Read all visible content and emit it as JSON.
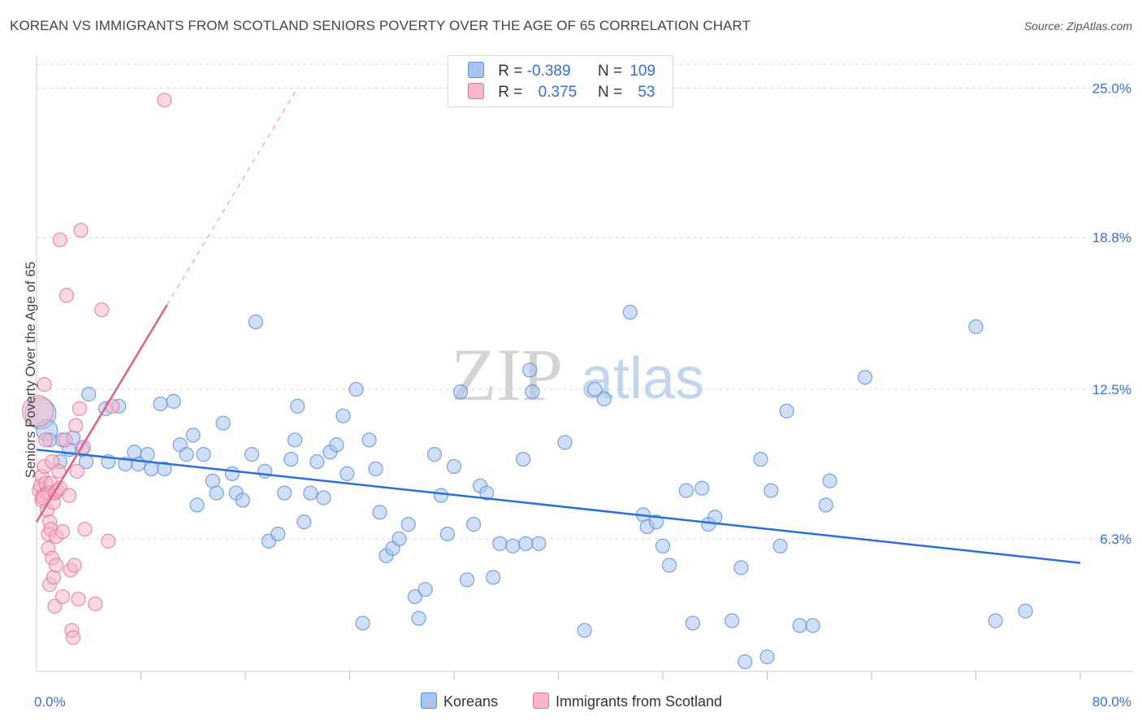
{
  "title": "KOREAN VS IMMIGRANTS FROM SCOTLAND SENIORS POVERTY OVER THE AGE OF 65 CORRELATION CHART",
  "source": "Source: ZipAtlas.com",
  "watermark": {
    "zip": "ZIP",
    "atlas": "atlas"
  },
  "legend": {
    "korean": {
      "r_label": "R =",
      "r": "-0.389",
      "n_label": "N =",
      "n": "109"
    },
    "scotland": {
      "r_label": "R =",
      "r": "0.375",
      "n_label": "N =",
      "n": "53"
    }
  },
  "colors": {
    "korean_fill": "#a9c5ef",
    "korean_stroke": "#5b8fd6",
    "korean_line": "#2a6fd4",
    "scotland_fill": "#f5b8cb",
    "scotland_stroke": "#e07798",
    "scotland_line": "#e0608a",
    "tick_label": "#3a6fd0",
    "grid": "#d8d8d8"
  },
  "chart_data": {
    "type": "scatter",
    "title": "KOREAN VS IMMIGRANTS FROM SCOTLAND SENIORS POVERTY OVER THE AGE OF 65 CORRELATION CHART",
    "xlabel": "",
    "ylabel": "Seniors Poverty Over the Age of 65",
    "xlim": [
      0,
      80
    ],
    "ylim": [
      0.8,
      26.8
    ],
    "x_tick_labels": [
      "0.0%",
      "80.0%"
    ],
    "y_ticks": [
      6.3,
      12.5,
      18.8,
      25.0
    ],
    "y_tick_labels": [
      "6.3%",
      "12.5%",
      "18.8%",
      "25.0%"
    ],
    "grid": true,
    "legend_position": "top-center",
    "series": [
      {
        "name": "Koreans",
        "r": -0.389,
        "n": 109,
        "trend": {
          "x0": 0,
          "y0": 10.0,
          "x1": 80,
          "y1": 5.3
        },
        "points": [
          [
            0.3,
            11.5
          ],
          [
            0.8,
            10.8
          ],
          [
            1.0,
            10.4
          ],
          [
            1.8,
            9.5
          ],
          [
            2.0,
            10.4
          ],
          [
            2.5,
            10.0
          ],
          [
            2.8,
            10.5
          ],
          [
            3.5,
            10.0
          ],
          [
            3.8,
            9.5
          ],
          [
            4.0,
            12.3
          ],
          [
            5.3,
            11.7
          ],
          [
            5.5,
            9.5
          ],
          [
            6.3,
            11.8
          ],
          [
            6.8,
            9.4
          ],
          [
            7.5,
            9.9
          ],
          [
            7.8,
            9.4
          ],
          [
            8.5,
            9.8
          ],
          [
            8.8,
            9.2
          ],
          [
            9.5,
            11.9
          ],
          [
            9.8,
            9.2
          ],
          [
            10.5,
            12.0
          ],
          [
            11.0,
            10.2
          ],
          [
            11.5,
            9.8
          ],
          [
            12.0,
            10.6
          ],
          [
            12.3,
            7.7
          ],
          [
            12.8,
            9.8
          ],
          [
            13.5,
            8.7
          ],
          [
            13.8,
            8.2
          ],
          [
            14.3,
            11.1
          ],
          [
            15.0,
            9.0
          ],
          [
            15.3,
            8.2
          ],
          [
            15.8,
            7.9
          ],
          [
            16.5,
            9.8
          ],
          [
            16.8,
            15.3
          ],
          [
            17.5,
            9.1
          ],
          [
            17.8,
            6.2
          ],
          [
            18.5,
            6.5
          ],
          [
            19.0,
            8.2
          ],
          [
            19.5,
            9.6
          ],
          [
            19.8,
            10.4
          ],
          [
            20.0,
            11.8
          ],
          [
            20.5,
            7.0
          ],
          [
            21.0,
            8.2
          ],
          [
            21.5,
            9.5
          ],
          [
            22.0,
            8.0
          ],
          [
            22.5,
            9.9
          ],
          [
            23.0,
            10.2
          ],
          [
            23.5,
            11.4
          ],
          [
            23.8,
            9.0
          ],
          [
            24.5,
            12.5
          ],
          [
            25.0,
            2.8
          ],
          [
            25.5,
            10.4
          ],
          [
            26.0,
            9.2
          ],
          [
            26.3,
            7.4
          ],
          [
            26.8,
            5.6
          ],
          [
            27.3,
            5.9
          ],
          [
            27.8,
            6.3
          ],
          [
            28.5,
            6.9
          ],
          [
            29.0,
            3.9
          ],
          [
            29.3,
            3.0
          ],
          [
            29.8,
            4.2
          ],
          [
            30.5,
            9.8
          ],
          [
            31.0,
            8.1
          ],
          [
            31.5,
            6.5
          ],
          [
            32.0,
            9.3
          ],
          [
            32.5,
            12.4
          ],
          [
            33.0,
            4.6
          ],
          [
            33.5,
            6.9
          ],
          [
            34.0,
            8.5
          ],
          [
            34.5,
            8.2
          ],
          [
            35.0,
            4.7
          ],
          [
            35.5,
            6.1
          ],
          [
            36.5,
            6.0
          ],
          [
            37.3,
            9.6
          ],
          [
            37.8,
            13.3
          ],
          [
            37.5,
            6.1
          ],
          [
            38.0,
            12.4
          ],
          [
            38.5,
            6.1
          ],
          [
            40.5,
            10.3
          ],
          [
            42.0,
            2.5
          ],
          [
            42.8,
            12.5
          ],
          [
            43.5,
            12.1
          ],
          [
            45.5,
            15.7
          ],
          [
            46.5,
            7.3
          ],
          [
            46.8,
            6.8
          ],
          [
            47.5,
            7.0
          ],
          [
            48.0,
            6.0
          ],
          [
            48.5,
            5.2
          ],
          [
            49.8,
            8.3
          ],
          [
            50.3,
            2.8
          ],
          [
            51.0,
            8.4
          ],
          [
            51.5,
            6.9
          ],
          [
            52.0,
            7.2
          ],
          [
            53.3,
            2.9
          ],
          [
            54.0,
            5.1
          ],
          [
            54.3,
            1.2
          ],
          [
            55.5,
            9.6
          ],
          [
            56.0,
            1.4
          ],
          [
            56.3,
            8.3
          ],
          [
            57.0,
            6.0
          ],
          [
            57.5,
            11.6
          ],
          [
            58.5,
            2.7
          ],
          [
            59.5,
            2.7
          ],
          [
            60.5,
            7.7
          ],
          [
            60.8,
            8.7
          ],
          [
            63.5,
            13.0
          ],
          [
            72.0,
            15.1
          ],
          [
            73.5,
            2.9
          ],
          [
            75.8,
            3.3
          ]
        ]
      },
      {
        "name": "Immigrants from Scotland",
        "r": 0.375,
        "n": 53,
        "trend": {
          "x0": 0,
          "y0": 7.0,
          "x1": 10,
          "y1": 16.0,
          "dash_to": {
            "x": 20,
            "y": 25.0
          }
        },
        "points": [
          [
            0.1,
            11.6
          ],
          [
            0.2,
            8.3
          ],
          [
            0.3,
            8.5
          ],
          [
            0.4,
            8.9
          ],
          [
            0.4,
            7.9
          ],
          [
            0.5,
            8.1
          ],
          [
            0.6,
            12.7
          ],
          [
            0.6,
            9.3
          ],
          [
            0.7,
            10.4
          ],
          [
            0.7,
            8.6
          ],
          [
            0.8,
            8.2
          ],
          [
            0.8,
            7.5
          ],
          [
            0.9,
            6.5
          ],
          [
            0.9,
            5.9
          ],
          [
            1.0,
            8.2
          ],
          [
            1.0,
            7.0
          ],
          [
            1.0,
            4.4
          ],
          [
            1.1,
            8.6
          ],
          [
            1.1,
            6.7
          ],
          [
            1.2,
            9.5
          ],
          [
            1.2,
            5.5
          ],
          [
            1.3,
            7.8
          ],
          [
            1.3,
            4.7
          ],
          [
            1.4,
            8.2
          ],
          [
            1.4,
            3.5
          ],
          [
            1.5,
            6.4
          ],
          [
            1.5,
            5.2
          ],
          [
            1.6,
            8.3
          ],
          [
            1.7,
            9.1
          ],
          [
            1.8,
            8.4
          ],
          [
            1.8,
            18.7
          ],
          [
            2.0,
            6.6
          ],
          [
            2.0,
            3.9
          ],
          [
            2.2,
            10.4
          ],
          [
            2.3,
            16.4
          ],
          [
            2.5,
            8.1
          ],
          [
            2.6,
            5.0
          ],
          [
            2.7,
            2.5
          ],
          [
            2.8,
            2.2
          ],
          [
            2.9,
            5.2
          ],
          [
            3.0,
            11.0
          ],
          [
            3.1,
            9.1
          ],
          [
            3.2,
            3.8
          ],
          [
            3.3,
            11.7
          ],
          [
            3.4,
            19.1
          ],
          [
            3.6,
            10.1
          ],
          [
            3.7,
            6.7
          ],
          [
            4.5,
            3.6
          ],
          [
            5.0,
            15.8
          ],
          [
            5.5,
            6.2
          ],
          [
            5.8,
            11.8
          ],
          [
            9.8,
            24.5
          ],
          [
            0.5,
            8.0
          ]
        ]
      }
    ]
  },
  "bottom_legend": {
    "korean": "Koreans",
    "scotland": "Immigrants from Scotland"
  }
}
